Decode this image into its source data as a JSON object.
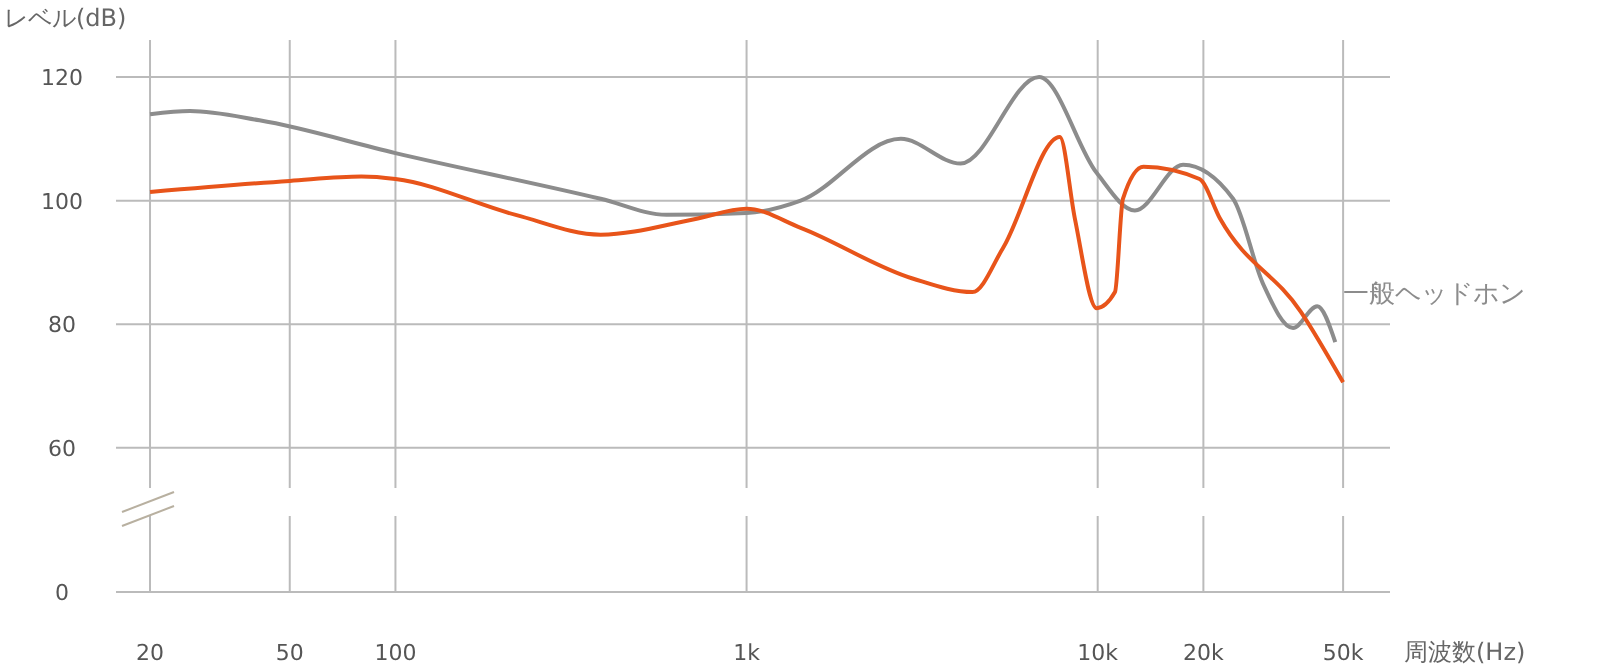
{
  "chart_data": {
    "type": "line",
    "xlabel": "周波数(Hz)",
    "ylabel": "レベル(dB)",
    "log": "x",
    "grid": true,
    "legend": false,
    "marker": "none",
    "line_style": "solid",
    "xlim": [
      16,
      68000
    ],
    "xticks": [
      20,
      50,
      100,
      {
        "value": 1000,
        "label": "1k"
      },
      {
        "value": 10000,
        "label": "10k"
      },
      {
        "value": 20000,
        "label": "20k"
      },
      {
        "value": 50000,
        "label": "50k"
      }
    ],
    "ylim": [
      53.5,
      126
    ],
    "yticks": [
      60,
      80,
      100,
      120
    ],
    "annotations": [
      "0"
    ],
    "series": [
      {
        "name": "一般ヘッドホン",
        "color": "#8c8c8c",
        "x": [
          20,
          26,
          41,
          100,
          384,
          592,
          1000,
          1426,
          2750,
          4070,
          6810,
          9930,
          12760,
          17500,
          24300,
          29600,
          36000,
          42200,
          47500
        ],
        "values": [
          114,
          114.5,
          113,
          107.7,
          100.3,
          97.7,
          98,
          100,
          110,
          106,
          120,
          104.5,
          98.4,
          105.8,
          100.3,
          86.5,
          79.4,
          82.9,
          77.1
        ]
      },
      {
        "color": "#e8541a",
        "x": [
          20,
          50,
          80,
          100,
          220,
          384,
          710,
          1000,
          1426,
          2970,
          4400,
          5370,
          7800,
          8610,
          9930,
          11200,
          11800,
          13500,
          19500,
          22300,
          37900,
          50000
        ],
        "values": [
          101.4,
          103.2,
          103.9,
          103.5,
          97.7,
          94.5,
          97,
          98.7,
          95.6,
          87.4,
          85.2,
          92.3,
          110.3,
          97.1,
          82.6,
          85.2,
          100.3,
          105.5,
          103.5,
          97.1,
          82,
          70.6
        ]
      }
    ]
  }
}
